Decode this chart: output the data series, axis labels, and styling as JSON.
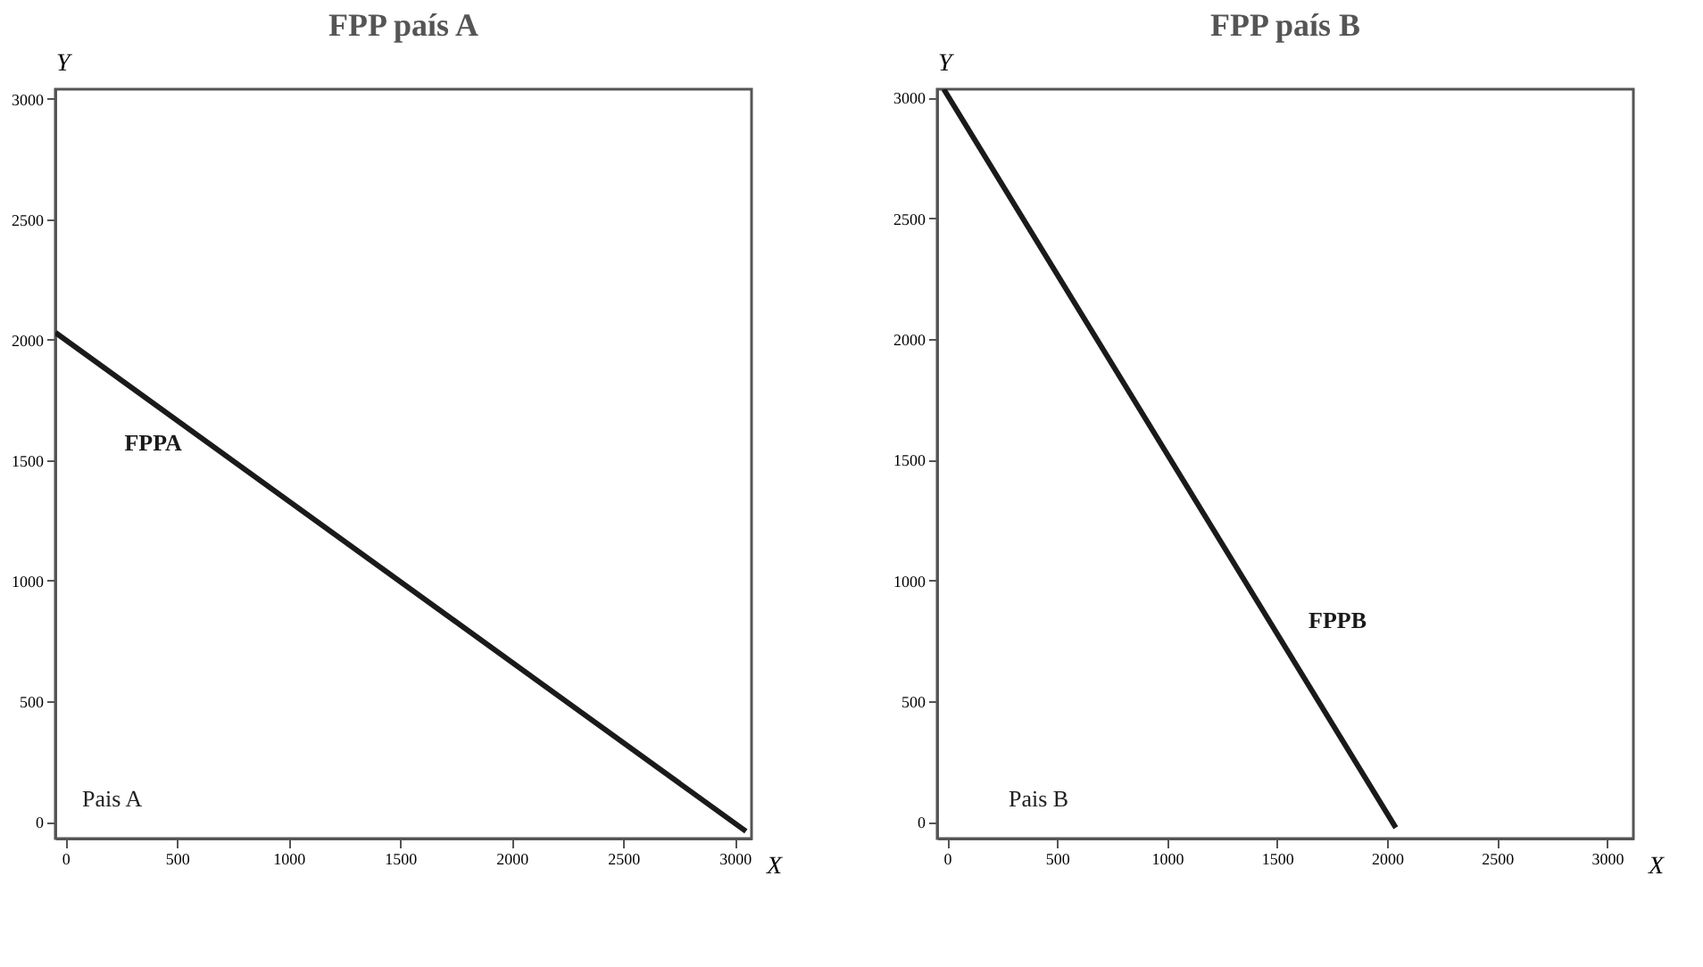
{
  "chart_data": [
    {
      "type": "line",
      "title": "FPP país A",
      "xlabel": "X",
      "ylabel": "Y",
      "x": [
        -45,
        3050
      ],
      "series": [
        {
          "name": "FPPA",
          "color": "#1a1a1a",
          "values": [
            2030,
            -40
          ]
        }
      ],
      "xlim": [
        -45,
        3075
      ],
      "ylim": [
        -70,
        3040
      ],
      "xticks": [
        0,
        500,
        1000,
        1500,
        2000,
        2500,
        3000
      ],
      "yticks": [
        0,
        500,
        1000,
        1500,
        2000,
        2500,
        3000
      ],
      "grid": false,
      "annotations": [
        "Pais A"
      ]
    },
    {
      "type": "line",
      "title": "FPP país B",
      "xlabel": "X",
      "ylabel": "Y",
      "x": [
        -15,
        2040
      ],
      "series": [
        {
          "name": "FPPB",
          "color": "#1a1a1a",
          "values": [
            3035,
            -25
          ]
        }
      ],
      "xlim": [
        -45,
        3120
      ],
      "ylim": [
        -70,
        3035
      ],
      "xticks": [
        0,
        500,
        1000,
        1500,
        2000,
        2500,
        3000
      ],
      "yticks": [
        0,
        500,
        1000,
        1500,
        2000,
        2500,
        3000
      ],
      "grid": false,
      "annotations": [
        "Pais B"
      ]
    }
  ]
}
